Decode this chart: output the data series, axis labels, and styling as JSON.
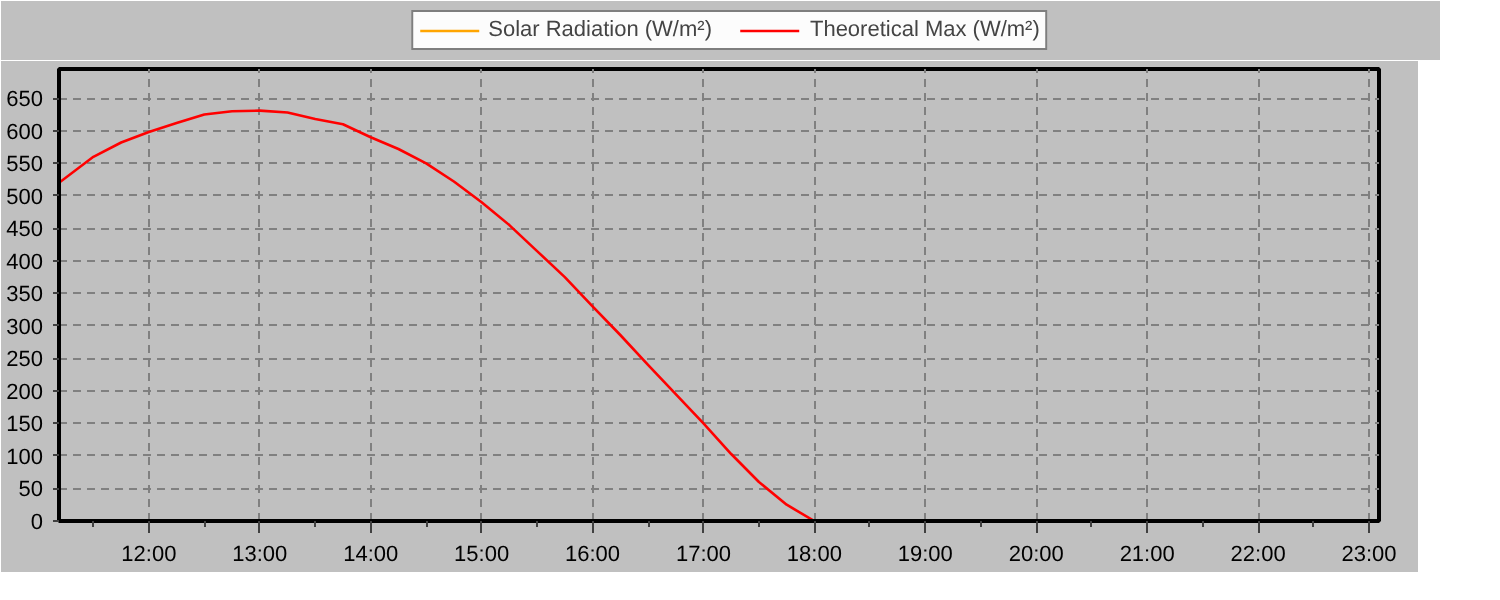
{
  "chart_data": {
    "type": "line",
    "xlim": [
      11.19,
      23.09
    ],
    "ylim": [
      0,
      695
    ],
    "xticks": [
      {
        "value": 12,
        "label": "12:00"
      },
      {
        "value": 13,
        "label": "13:00"
      },
      {
        "value": 14,
        "label": "14:00"
      },
      {
        "value": 15,
        "label": "15:00"
      },
      {
        "value": 16,
        "label": "16:00"
      },
      {
        "value": 17,
        "label": "17:00"
      },
      {
        "value": 18,
        "label": "18:00"
      },
      {
        "value": 19,
        "label": "19:00"
      },
      {
        "value": 20,
        "label": "20:00"
      },
      {
        "value": 21,
        "label": "21:00"
      },
      {
        "value": 22,
        "label": "22:00"
      },
      {
        "value": 23,
        "label": "23:00"
      }
    ],
    "yticks": [
      0,
      50,
      100,
      150,
      200,
      250,
      300,
      350,
      400,
      450,
      500,
      550,
      600,
      650
    ],
    "grid": true,
    "legend": "top",
    "marker": "none",
    "line_style": "solid",
    "series": [
      {
        "name": "Solar Radiation (W/m²)",
        "color": "#ffa500"
      },
      {
        "name": "Theoretical Max (W/m²)",
        "color": "#ff0000",
        "x": [
          11.19,
          11.5,
          11.75,
          12,
          12.25,
          12.5,
          12.75,
          13,
          13.25,
          13.5,
          13.75,
          14,
          14.25,
          14.5,
          14.75,
          15,
          15.25,
          15.5,
          15.75,
          16,
          16.25,
          16.5,
          16.75,
          17,
          17.25,
          17.5,
          17.75,
          18
        ],
        "values": [
          520,
          560,
          582,
          598,
          612,
          625,
          630,
          631,
          628,
          618,
          610,
          590,
          572,
          550,
          522,
          490,
          455,
          415,
          375,
          330,
          286,
          240,
          195,
          150,
          103,
          60,
          25,
          0
        ]
      }
    ]
  }
}
